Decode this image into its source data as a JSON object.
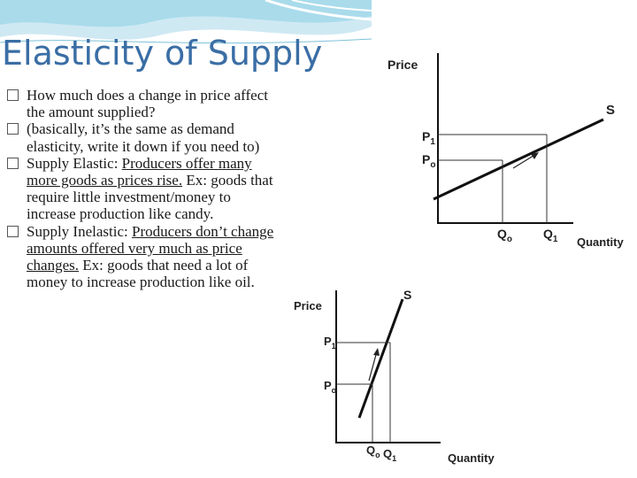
{
  "slide": {
    "title": "Elasticity of Supply",
    "bullets": [
      {
        "text": "How much does a change in price affect the amount supplied?",
        "underlined": ""
      },
      {
        "text": "(basically, it’s the same as demand elasticity, write it down if you need to)",
        "underlined": ""
      },
      {
        "lead": "Supply Elastic: ",
        "underlined": "Producers offer many more goods as prices rise.",
        "tail": " Ex: goods that require little investment/money to increase production like candy."
      },
      {
        "lead": "Supply Inelastic: ",
        "underlined": "Producers don’t change amounts offered very much as price changes.",
        "tail": " Ex: goods that need a lot of money to increase production like oil."
      }
    ]
  },
  "graph_elastic": {
    "y_axis_label": "Price",
    "x_axis_label": "Quantity",
    "curve_label": "S",
    "p1_label": "P",
    "p1_sub": "1",
    "p0_label": "P",
    "p0_sub": "o",
    "q0_label": "Q",
    "q0_sub": "o",
    "q1_label": "Q",
    "q1_sub": "1"
  },
  "graph_inelastic": {
    "y_axis_label": "Price",
    "x_axis_label": "Quantity",
    "curve_label": "S",
    "p1_label": "P",
    "p1_sub": "1",
    "p0_label": "P",
    "p0_sub": "o",
    "q0_label": "Q",
    "q0_sub": "o",
    "q1_label": "Q",
    "q1_sub": "1"
  },
  "colors": {
    "title": "#3a6ea5",
    "header_wave": "#9fd3e6"
  }
}
